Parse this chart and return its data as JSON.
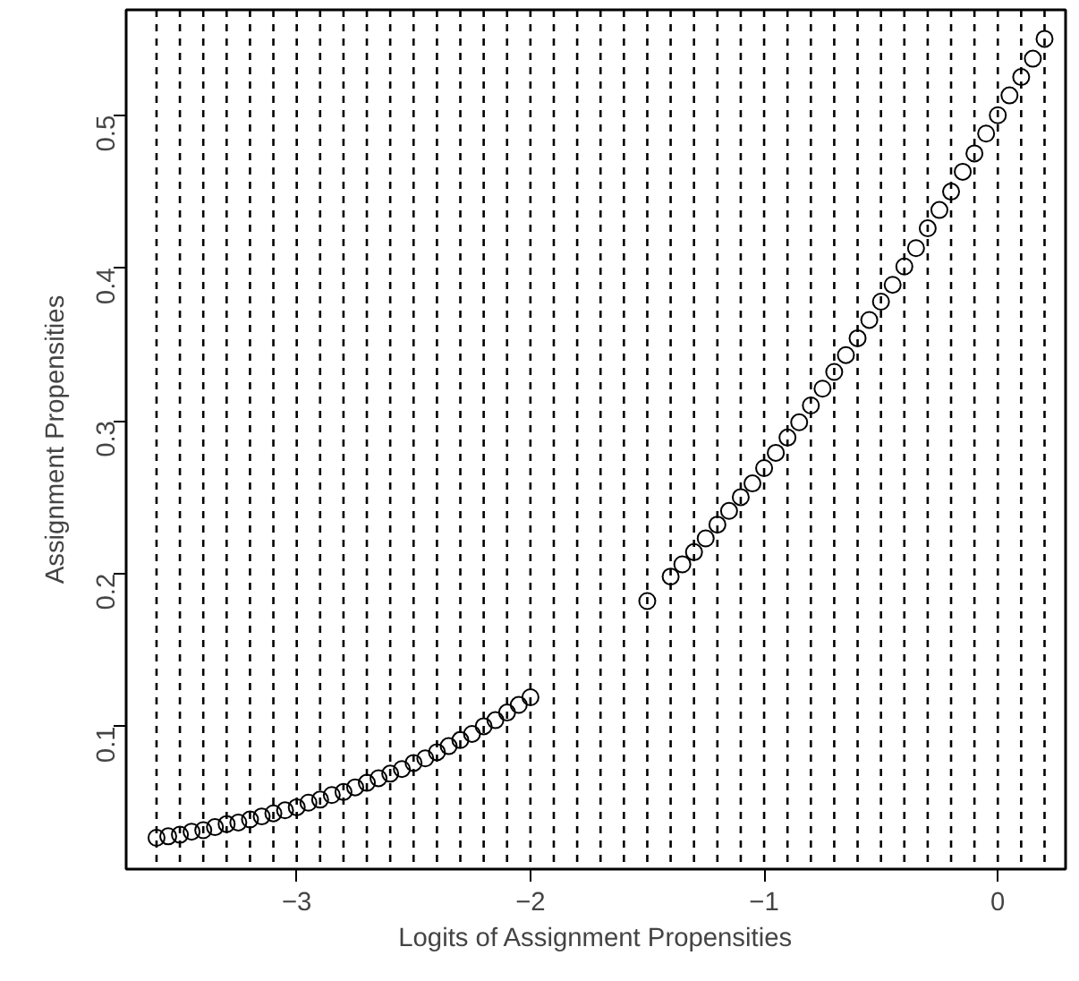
{
  "chart_data": {
    "type": "scatter",
    "xlabel": "Logits of Assignment Propensities",
    "ylabel": "Assignment Propensities",
    "marker": "circle",
    "grid": false,
    "xlim": [
      -3.73,
      0.29
    ],
    "ylim": [
      0.0065,
      0.569
    ],
    "xticks": [
      -3,
      -2,
      -1,
      0
    ],
    "yticks": [
      0.1,
      0.2,
      0.3,
      0.4,
      0.5
    ],
    "series": [
      {
        "color": "#000000",
        "x": [
          -3.6,
          -3.55,
          -3.5,
          -3.45,
          -3.4,
          -3.35,
          -3.3,
          -3.25,
          -3.2,
          -3.15,
          -3.1,
          -3.05,
          -3.0,
          -2.95,
          -2.9,
          -2.85,
          -2.8,
          -2.75,
          -2.7,
          -2.65,
          -2.6,
          -2.55,
          -2.5,
          -2.45,
          -2.4,
          -2.35,
          -2.3,
          -2.25,
          -2.2,
          -2.15,
          -2.1,
          -2.05,
          -2.0,
          -1.5,
          -1.4,
          -1.35,
          -1.3,
          -1.25,
          -1.2,
          -1.15,
          -1.1,
          -1.05,
          -1.0,
          -0.95,
          -0.9,
          -0.85,
          -0.8,
          -0.75,
          -0.7,
          -0.65,
          -0.6,
          -0.55,
          -0.5,
          -0.45,
          -0.4,
          -0.35,
          -0.3,
          -0.25,
          -0.2,
          -0.15,
          -0.1,
          -0.05,
          0.0,
          0.05,
          0.1,
          0.15,
          0.2
        ],
        "values": [
          0.027,
          0.028,
          0.029,
          0.031,
          0.032,
          0.034,
          0.036,
          0.037,
          0.039,
          0.041,
          0.043,
          0.045,
          0.047,
          0.05,
          0.052,
          0.055,
          0.057,
          0.06,
          0.063,
          0.066,
          0.069,
          0.072,
          0.076,
          0.079,
          0.083,
          0.087,
          0.091,
          0.095,
          0.1,
          0.104,
          0.109,
          0.114,
          0.119,
          0.182,
          0.198,
          0.206,
          0.214,
          0.223,
          0.232,
          0.241,
          0.25,
          0.259,
          0.269,
          0.279,
          0.289,
          0.299,
          0.31,
          0.321,
          0.332,
          0.343,
          0.354,
          0.366,
          0.378,
          0.389,
          0.401,
          0.413,
          0.426,
          0.438,
          0.45,
          0.463,
          0.475,
          0.488,
          0.5,
          0.513,
          0.525,
          0.537,
          0.55
        ]
      }
    ],
    "ref_lines": [
      {
        "axis": "x",
        "value": -3.6,
        "color": "#000000",
        "line_style": "dashed"
      },
      {
        "axis": "x",
        "value": -3.5,
        "color": "#000000",
        "line_style": "dashed"
      },
      {
        "axis": "x",
        "value": -3.4,
        "color": "#000000",
        "line_style": "dashed"
      },
      {
        "axis": "x",
        "value": -3.3,
        "color": "#000000",
        "line_style": "dashed"
      },
      {
        "axis": "x",
        "value": -3.2,
        "color": "#000000",
        "line_style": "dashed"
      },
      {
        "axis": "x",
        "value": -3.1,
        "color": "#000000",
        "line_style": "dashed"
      },
      {
        "axis": "x",
        "value": -3.0,
        "color": "#000000",
        "line_style": "dashed"
      },
      {
        "axis": "x",
        "value": -2.9,
        "color": "#000000",
        "line_style": "dashed"
      },
      {
        "axis": "x",
        "value": -2.8,
        "color": "#000000",
        "line_style": "dashed"
      },
      {
        "axis": "x",
        "value": -2.7,
        "color": "#000000",
        "line_style": "dashed"
      },
      {
        "axis": "x",
        "value": -2.6,
        "color": "#000000",
        "line_style": "dashed"
      },
      {
        "axis": "x",
        "value": -2.5,
        "color": "#000000",
        "line_style": "dashed"
      },
      {
        "axis": "x",
        "value": -2.4,
        "color": "#000000",
        "line_style": "dashed"
      },
      {
        "axis": "x",
        "value": -2.3,
        "color": "#000000",
        "line_style": "dashed"
      },
      {
        "axis": "x",
        "value": -2.2,
        "color": "#000000",
        "line_style": "dashed"
      },
      {
        "axis": "x",
        "value": -2.1,
        "color": "#000000",
        "line_style": "dashed"
      },
      {
        "axis": "x",
        "value": -2.0,
        "color": "#000000",
        "line_style": "dashed"
      },
      {
        "axis": "x",
        "value": -1.9,
        "color": "#000000",
        "line_style": "dashed"
      },
      {
        "axis": "x",
        "value": -1.8,
        "color": "#000000",
        "line_style": "dashed"
      },
      {
        "axis": "x",
        "value": -1.7,
        "color": "#000000",
        "line_style": "dashed"
      },
      {
        "axis": "x",
        "value": -1.6,
        "color": "#000000",
        "line_style": "dashed"
      },
      {
        "axis": "x",
        "value": -1.5,
        "color": "#000000",
        "line_style": "dashed"
      },
      {
        "axis": "x",
        "value": -1.4,
        "color": "#000000",
        "line_style": "dashed"
      },
      {
        "axis": "x",
        "value": -1.3,
        "color": "#000000",
        "line_style": "dashed"
      },
      {
        "axis": "x",
        "value": -1.2,
        "color": "#000000",
        "line_style": "dashed"
      },
      {
        "axis": "x",
        "value": -1.1,
        "color": "#000000",
        "line_style": "dashed"
      },
      {
        "axis": "x",
        "value": -1.0,
        "color": "#000000",
        "line_style": "dashed"
      },
      {
        "axis": "x",
        "value": -0.9,
        "color": "#000000",
        "line_style": "dashed"
      },
      {
        "axis": "x",
        "value": -0.8,
        "color": "#000000",
        "line_style": "dashed"
      },
      {
        "axis": "x",
        "value": -0.7,
        "color": "#000000",
        "line_style": "dashed"
      },
      {
        "axis": "x",
        "value": -0.6,
        "color": "#000000",
        "line_style": "dashed"
      },
      {
        "axis": "x",
        "value": -0.5,
        "color": "#000000",
        "line_style": "dashed"
      },
      {
        "axis": "x",
        "value": -0.4,
        "color": "#000000",
        "line_style": "dashed"
      },
      {
        "axis": "x",
        "value": -0.3,
        "color": "#000000",
        "line_style": "dashed"
      },
      {
        "axis": "x",
        "value": -0.2,
        "color": "#000000",
        "line_style": "dashed"
      },
      {
        "axis": "x",
        "value": -0.1,
        "color": "#000000",
        "line_style": "dashed"
      },
      {
        "axis": "x",
        "value": 0.0,
        "color": "#000000",
        "line_style": "dashed"
      },
      {
        "axis": "x",
        "value": 0.1,
        "color": "#000000",
        "line_style": "dashed"
      },
      {
        "axis": "x",
        "value": 0.2,
        "color": "#000000",
        "line_style": "dashed"
      }
    ]
  }
}
